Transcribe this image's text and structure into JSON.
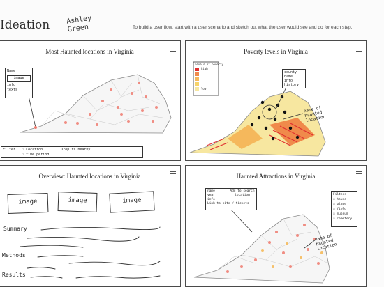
{
  "header": {
    "title": "Ideation",
    "author": "Ashley Green",
    "instructions": "To build a user flow, start with a user scenario and sketch out what the user would see and do for each step."
  },
  "panels": [
    {
      "title": "Most Haunted locations in Virginia",
      "tooltip": [
        "Name",
        "image",
        "info",
        "texts"
      ],
      "filter_label": "Filter",
      "filter_options": [
        "Location",
        "time period"
      ],
      "filter_text": "Drop is nearby"
    },
    {
      "title": "Poverty levels in Virginia",
      "legend_title": "levels of poverty",
      "legend_high": "high",
      "legend_low": "low",
      "info_box": [
        "county",
        "name",
        "info",
        "history"
      ],
      "annotation": "name of haunted location"
    },
    {
      "title": "Overview: Haunted locations in Virginia",
      "image_labels": [
        "image",
        "image",
        "image"
      ],
      "sections": [
        "Summary",
        "Methods",
        "Results"
      ]
    },
    {
      "title": "Haunted Attractions in Virginia",
      "info_box": [
        "name",
        "year",
        "info",
        "Link to site / tickets"
      ],
      "info_box_right": "Add to search location",
      "filters_title": "Filters",
      "filters": [
        "house",
        "place",
        "field",
        "museum",
        "cemetery"
      ],
      "annotation": "name of haunted location"
    }
  ]
}
